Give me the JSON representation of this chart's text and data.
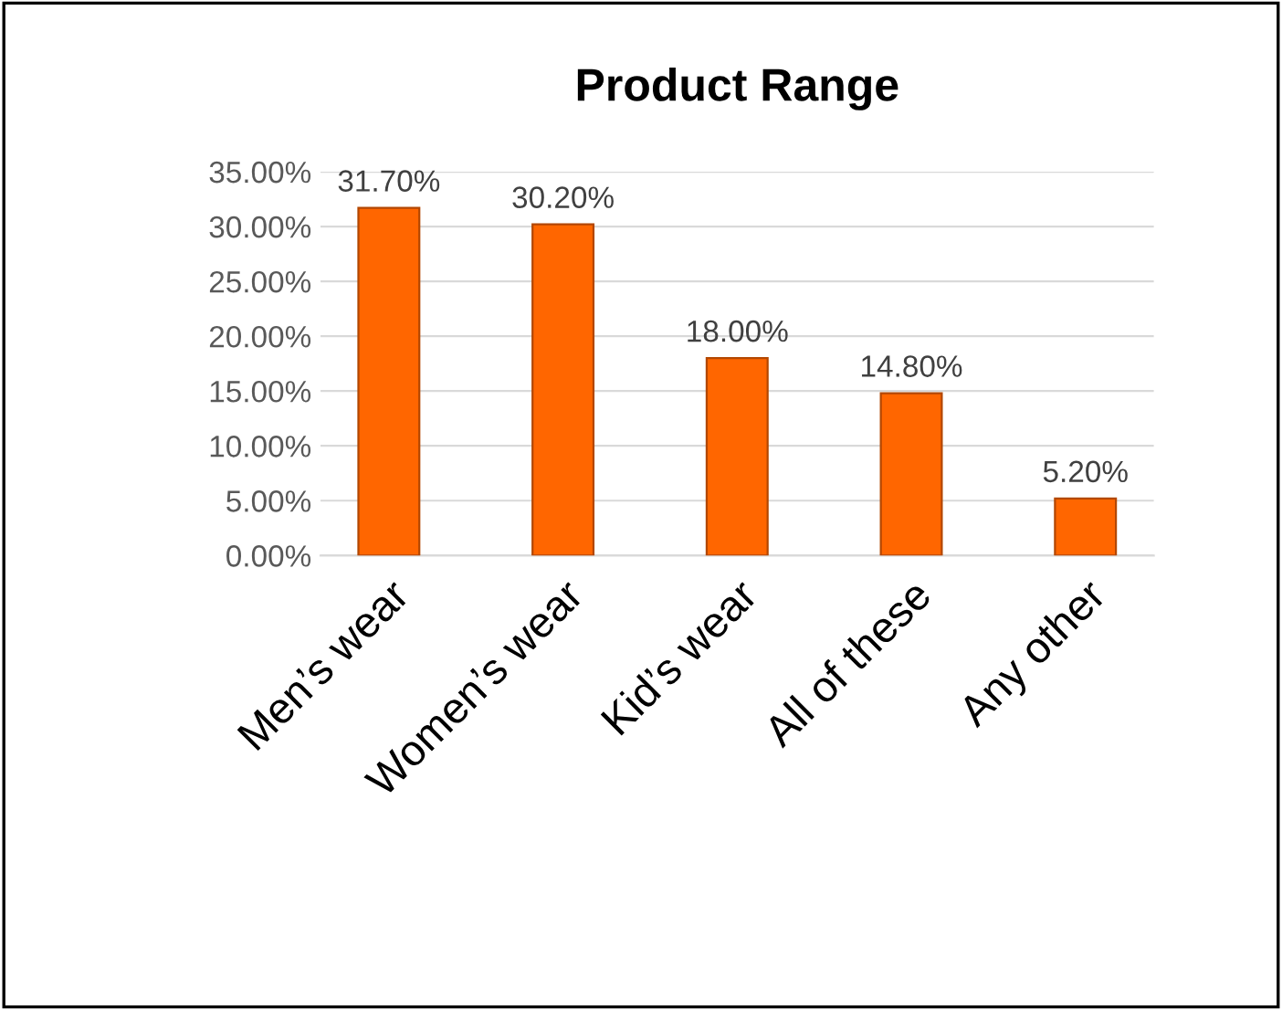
{
  "chart_data": {
    "type": "bar",
    "title": "Product Range",
    "categories": [
      "Men’s wear",
      "Women’s wear",
      "Kid’s wear",
      "All of these",
      "Any other"
    ],
    "values": [
      31.7,
      30.2,
      18.0,
      14.8,
      5.2
    ],
    "value_labels": [
      "31.70%",
      "30.20%",
      "18.00%",
      "14.80%",
      "5.20%"
    ],
    "color": "#ff6600",
    "ylim": [
      0,
      35
    ],
    "yticks": [
      {
        "value": 0,
        "label": "0.00%"
      },
      {
        "value": 5,
        "label": "5.00%"
      },
      {
        "value": 10,
        "label": "10.00%"
      },
      {
        "value": 15,
        "label": "15.00%"
      },
      {
        "value": 20,
        "label": "20.00%"
      },
      {
        "value": 25,
        "label": "25.00%"
      },
      {
        "value": 30,
        "label": "30.00%"
      },
      {
        "value": 35,
        "label": "35.00%"
      }
    ],
    "grid": "y"
  }
}
